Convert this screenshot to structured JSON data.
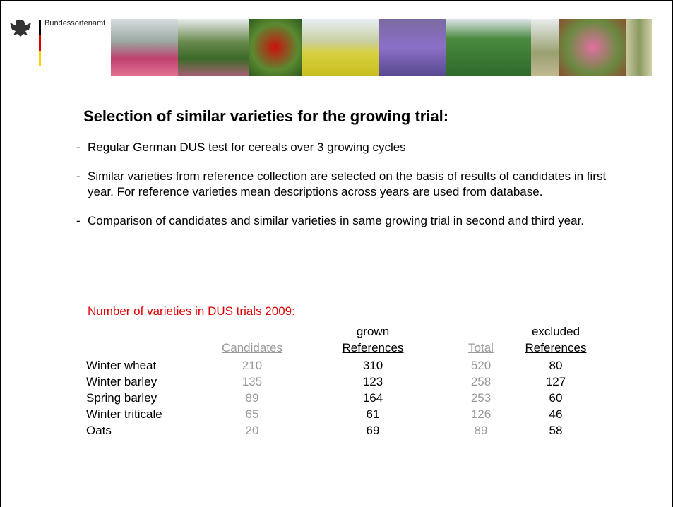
{
  "header": {
    "org": "Bundessortenamt"
  },
  "title": "Selection of similar varieties for the growing trial:",
  "bullets": [
    {
      "marker": "-",
      "text": "Regular German DUS test for cereals  over 3 growing cycles"
    },
    {
      "marker": "-",
      "text": "Similar varieties from reference collection are selected on the basis of results of candidates in first year. For reference varieties mean descriptions across years are used from database."
    },
    {
      "marker": "-",
      "text": "Comparison of candidates and similar varieties in same growing trial in second and third year."
    }
  ],
  "table": {
    "caption": "Number of varieties in DUS trials 2009:",
    "columns": [
      {
        "lines": [
          "Candidates"
        ],
        "color": "#999999"
      },
      {
        "lines": [
          "grown",
          "References"
        ],
        "color": "#000000"
      },
      {
        "lines": [
          "Total"
        ],
        "color": "#999999"
      },
      {
        "lines": [
          "excluded",
          "References"
        ],
        "color": "#000000"
      }
    ],
    "rows": [
      [
        "Winter wheat",
        210,
        310,
        520,
        80
      ],
      [
        "Winter barley",
        135,
        123,
        258,
        127
      ],
      [
        "Spring barley",
        89,
        164,
        253,
        60
      ],
      [
        "Winter triticale",
        65,
        61,
        126,
        46
      ],
      [
        "Oats",
        20,
        69,
        89,
        58
      ]
    ]
  }
}
